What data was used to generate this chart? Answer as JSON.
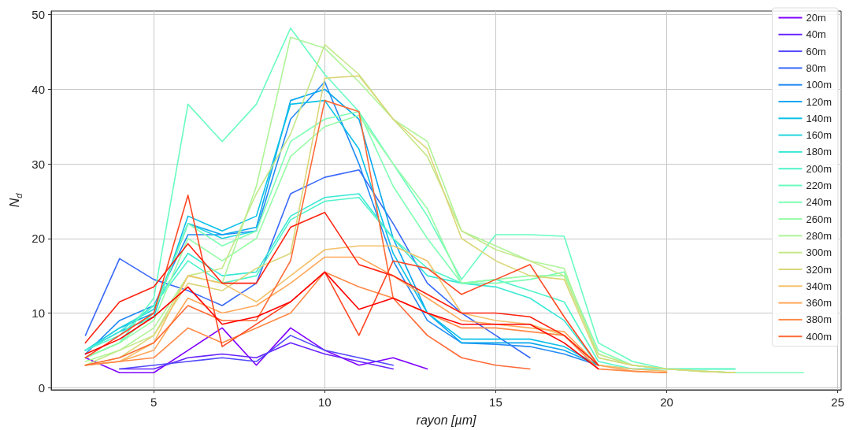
{
  "chart_data": {
    "type": "line",
    "xlabel": "rayon [µm]",
    "ylabel": "N$_{d}$",
    "xlim": [
      2,
      25.1
    ],
    "ylim": [
      -0.3,
      50.5
    ],
    "xticks": [
      5,
      10,
      15,
      20,
      25
    ],
    "yticks": [
      0,
      10,
      20,
      30,
      40,
      50
    ],
    "grid": true,
    "legend": "top right",
    "marker": "none",
    "line_style": "solid",
    "series": [
      {
        "name": "20m",
        "color": "#7f00ff",
        "x": [
          3,
          4,
          5,
          6,
          7,
          8,
          9,
          10,
          11,
          12,
          13
        ],
        "values": [
          4,
          2,
          2,
          5,
          8,
          3,
          8,
          5,
          3,
          4,
          2.5
        ]
      },
      {
        "name": "40m",
        "color": "#6824fe",
        "x": [
          4,
          5,
          6,
          7,
          8,
          9,
          10,
          11,
          12
        ],
        "values": [
          2.5,
          2.5,
          4,
          4.5,
          4,
          6,
          4.5,
          3.5,
          2.5
        ]
      },
      {
        "name": "60m",
        "color": "#5148fc",
        "x": [
          4,
          5,
          6,
          7,
          8,
          9,
          10,
          11,
          12
        ],
        "values": [
          2.5,
          3,
          3.5,
          4,
          3.5,
          7,
          5,
          4,
          3
        ]
      },
      {
        "name": "80m",
        "color": "#3a6af9",
        "x": [
          3,
          4,
          5,
          6,
          7,
          8,
          9,
          10,
          11,
          12,
          13,
          14,
          15,
          16
        ],
        "values": [
          7,
          17.3,
          14.5,
          13,
          11,
          14,
          26,
          28.2,
          29.2,
          22,
          14,
          10,
          7,
          4
        ]
      },
      {
        "name": "100m",
        "color": "#238af4",
        "x": [
          3,
          4,
          5,
          6,
          7,
          8,
          9,
          10,
          11,
          12,
          13,
          14,
          15,
          16,
          17,
          18
        ],
        "values": [
          4.5,
          9,
          11,
          20.5,
          20.5,
          21,
          36,
          41,
          30,
          17,
          9,
          6,
          5.8,
          5.5,
          4.5,
          3
        ]
      },
      {
        "name": "120m",
        "color": "#0ba7ef",
        "x": [
          3,
          4,
          5,
          6,
          7,
          8,
          9,
          10,
          11,
          12,
          13,
          14,
          15,
          16,
          17,
          18
        ],
        "values": [
          5,
          8,
          10,
          22,
          20.5,
          21.5,
          38.5,
          40,
          36,
          20,
          10,
          6,
          6,
          6,
          5,
          3
        ]
      },
      {
        "name": "140m",
        "color": "#0bc1e8",
        "x": [
          3,
          4,
          5,
          6,
          7,
          8,
          9,
          10,
          11,
          12,
          13,
          14,
          15,
          16,
          17,
          18
        ],
        "values": [
          5,
          7.5,
          9.5,
          23,
          21,
          23,
          38,
          38.5,
          32,
          18,
          10,
          6.5,
          6.5,
          6.5,
          5.5,
          3
        ]
      },
      {
        "name": "160m",
        "color": "#23d6e0",
        "x": [
          3,
          4,
          5,
          6,
          7,
          8
        ],
        "values": [
          5,
          8,
          10.5,
          22,
          20,
          21
        ]
      },
      {
        "name": "180m",
        "color": "#3ae8d6",
        "x": [
          3,
          4,
          5,
          6,
          7,
          8,
          9,
          10,
          11,
          12,
          13,
          14,
          15,
          16,
          17,
          18,
          19,
          20,
          21,
          22
        ],
        "values": [
          5,
          7.5,
          11,
          18,
          15,
          15.5,
          23,
          25.5,
          26,
          20,
          15,
          14,
          13.5,
          12,
          9,
          3,
          2.5,
          2.5,
          2.5,
          2.5
        ]
      },
      {
        "name": "200m",
        "color": "#51f4cc",
        "x": [
          3,
          4,
          5,
          6,
          7,
          8,
          9,
          10,
          11,
          12,
          13,
          14,
          15,
          16,
          17,
          18,
          19,
          20,
          21,
          22
        ],
        "values": [
          5,
          7,
          11,
          17,
          14,
          15,
          22.5,
          25,
          25.5,
          20,
          16,
          14,
          14.5,
          13,
          11.5,
          3.5,
          2.5,
          2.5,
          2.5,
          2.5
        ]
      },
      {
        "name": "220m",
        "color": "#68fcc1",
        "x": [
          3,
          4,
          5,
          6,
          7,
          8,
          9,
          10,
          11,
          12,
          13,
          14,
          15,
          16,
          17,
          18,
          19,
          20,
          21,
          22
        ],
        "values": [
          4,
          6,
          12,
          38,
          33,
          38,
          48.2,
          42,
          37,
          30,
          23,
          14.5,
          20.5,
          20.5,
          20.3,
          6,
          3.5,
          2.5,
          2.5,
          2.5
        ]
      },
      {
        "name": "240m",
        "color": "#7fffb4",
        "x": [
          3,
          4,
          5,
          6,
          7,
          8,
          9,
          10,
          11,
          12,
          13,
          14,
          15,
          16,
          17,
          18,
          19,
          20,
          21,
          22,
          23,
          24
        ],
        "values": [
          4,
          6,
          10,
          22,
          19,
          21,
          33,
          36,
          37,
          27,
          20,
          14,
          14,
          14.5,
          15.5,
          5,
          3,
          2.5,
          2.2,
          2,
          2,
          2
        ]
      },
      {
        "name": "260m",
        "color": "#97fca7",
        "x": [
          3,
          4,
          5,
          6,
          7,
          8,
          9,
          10,
          11,
          12,
          13,
          14,
          15,
          16,
          17,
          18,
          19,
          20,
          21,
          22
        ],
        "values": [
          4,
          6,
          9,
          20,
          17,
          20,
          31,
          35,
          36.5,
          30,
          24,
          14,
          14.5,
          15,
          15,
          4.5,
          3,
          2.5,
          2.2,
          2
        ]
      },
      {
        "name": "280m",
        "color": "#aef498",
        "x": [
          3,
          4,
          5,
          6,
          7,
          8,
          9,
          10,
          11,
          12,
          13,
          14,
          15,
          16,
          17,
          18,
          19,
          20,
          21,
          22
        ],
        "values": [
          3.5,
          5,
          8,
          15,
          14,
          27,
          47,
          45.5,
          41,
          36,
          33,
          21,
          19,
          17,
          16,
          4,
          3,
          2.5,
          2.2,
          2
        ]
      },
      {
        "name": "300m",
        "color": "#c5e88a",
        "x": [
          3,
          4,
          5,
          6,
          7,
          8,
          9,
          10,
          11,
          12,
          13,
          14,
          15,
          16,
          17,
          18,
          19,
          20,
          21,
          22
        ],
        "values": [
          3,
          5,
          7,
          15,
          16,
          26,
          34,
          46,
          42,
          36,
          31,
          21,
          18.5,
          17,
          15,
          4.5,
          3,
          2.5,
          2.2,
          2
        ]
      },
      {
        "name": "320m",
        "color": "#dcd67a",
        "x": [
          3,
          4,
          5,
          6,
          7,
          8,
          9,
          10,
          11,
          12,
          13,
          14,
          15,
          16,
          17,
          18,
          19,
          20,
          21,
          22
        ],
        "values": [
          3,
          4,
          7,
          14,
          13,
          16,
          18,
          41.5,
          41.8,
          36,
          32,
          20,
          17,
          15,
          14.5,
          4,
          3,
          2.5,
          2.2,
          2
        ]
      },
      {
        "name": "340m",
        "color": "#f3c16a",
        "x": [
          3,
          4,
          5,
          6,
          7,
          8,
          9,
          10,
          11,
          12,
          13,
          14,
          15,
          16,
          17,
          18,
          19,
          20
        ],
        "values": [
          3,
          3.5,
          6,
          15,
          14,
          11.5,
          15,
          18.5,
          19,
          19,
          17,
          10,
          9,
          8.5,
          7,
          3,
          2.5,
          2.2
        ]
      },
      {
        "name": "360m",
        "color": "#ffa759",
        "x": [
          3,
          4,
          5,
          6,
          7,
          8,
          9,
          10,
          11,
          12,
          13,
          14,
          15,
          16,
          17,
          18,
          19,
          20
        ],
        "values": [
          3,
          3.5,
          5,
          12,
          10,
          11,
          14,
          17.5,
          17.5,
          15,
          12,
          9,
          8.5,
          8,
          7.5,
          3,
          2.2,
          2
        ]
      },
      {
        "name": "380m",
        "color": "#ff8a48",
        "x": [
          3,
          4,
          5,
          6,
          7,
          8,
          9,
          10,
          11,
          12,
          13,
          14,
          15,
          16,
          17,
          18,
          19,
          20
        ],
        "values": [
          3,
          3.5,
          4,
          8,
          6,
          8,
          10,
          15.5,
          13.5,
          12,
          10,
          8,
          8,
          7.5,
          7,
          2.5,
          2.2,
          2
        ]
      },
      {
        "name": "400m",
        "color": "#ff6a36",
        "x": [
          3,
          4,
          5,
          6,
          7,
          8,
          9,
          10,
          11,
          12,
          13,
          14,
          15,
          16
        ],
        "values": [
          3,
          4,
          6,
          11,
          9,
          9,
          17,
          38.5,
          37,
          12,
          7,
          4,
          3,
          2.5
        ]
      },
      {
        "color": "#ff4824",
        "x": [
          3,
          4,
          5,
          6,
          7,
          8,
          9,
          10,
          11,
          12,
          13,
          14,
          15,
          16,
          17,
          18
        ],
        "values": [
          4,
          7,
          10,
          25.8,
          5.5,
          8.5,
          11.5,
          15.5,
          7,
          17,
          16,
          12.5,
          14.5,
          16.5,
          9.5,
          3
        ]
      },
      {
        "color": "#ff2412",
        "x": [
          3,
          4,
          5,
          6,
          7,
          8,
          9,
          10,
          11,
          12,
          13,
          14,
          15,
          16,
          17,
          18
        ],
        "values": [
          6,
          11.5,
          13.5,
          19.3,
          14,
          14,
          21.5,
          23.5,
          16.5,
          15,
          12.5,
          10,
          10,
          9.5,
          7,
          3
        ]
      },
      {
        "color": "#ff0000",
        "x": [
          3,
          4,
          5,
          6,
          7,
          8,
          9,
          10,
          11,
          12,
          13,
          14,
          15,
          16,
          17,
          18
        ],
        "values": [
          4.5,
          6.5,
          9.5,
          13.5,
          8.5,
          9.5,
          11.5,
          15.5,
          10.5,
          12,
          10,
          8.5,
          8.5,
          8.5,
          6,
          2.5
        ]
      }
    ]
  }
}
